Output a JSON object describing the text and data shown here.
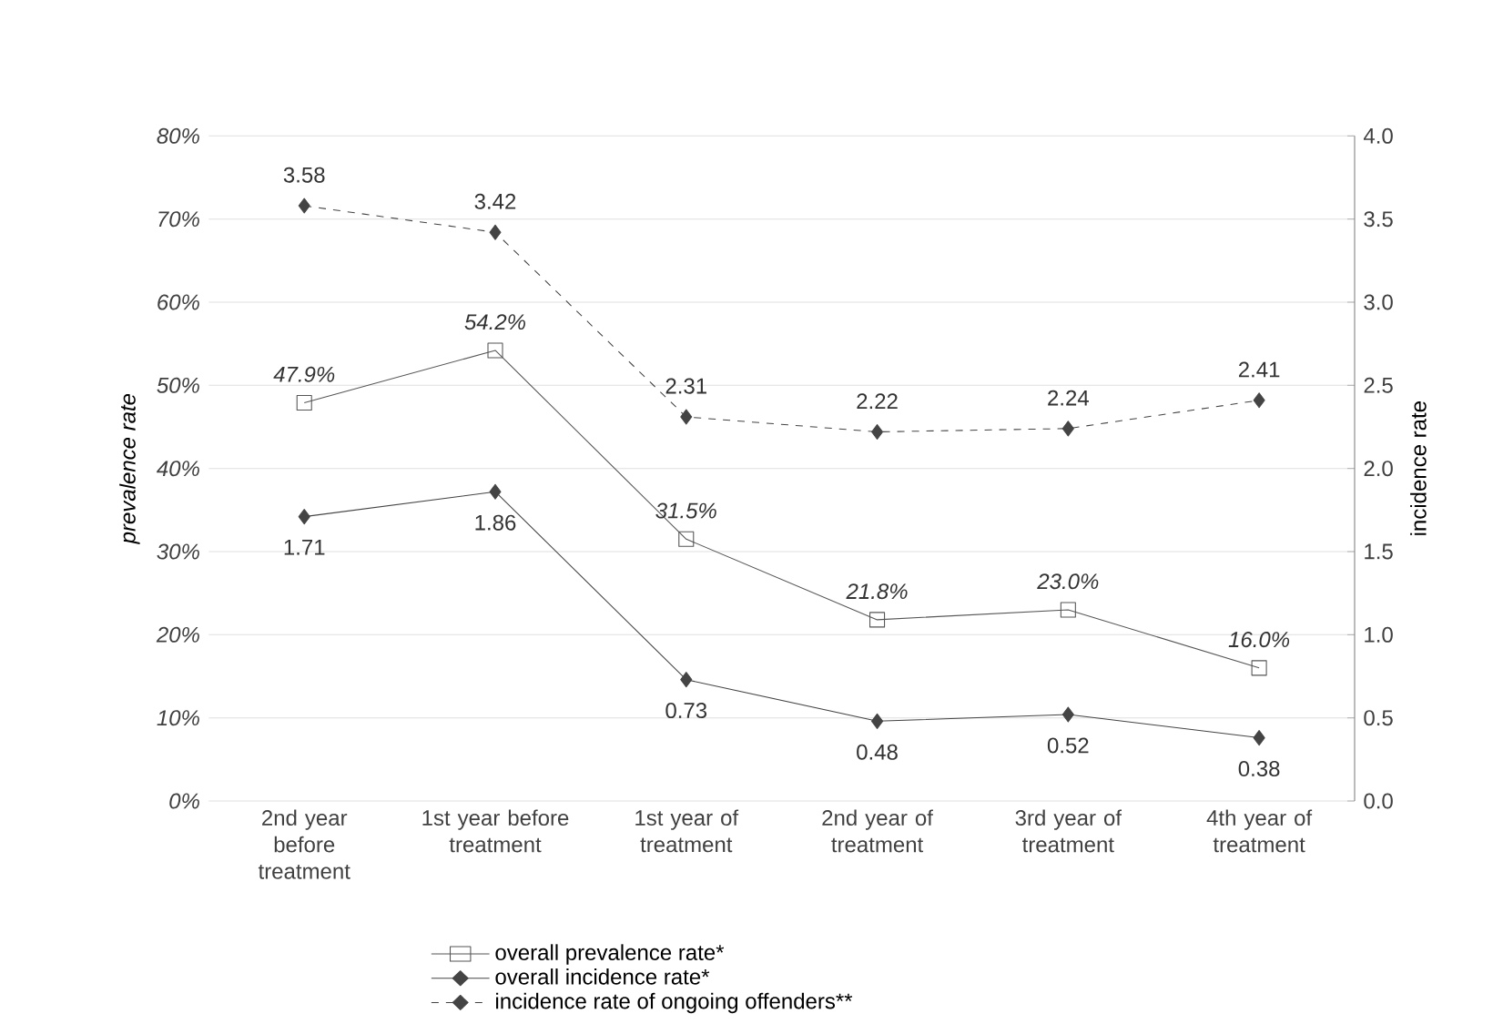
{
  "chart_data": {
    "type": "line",
    "ylabel": "prevalence rate",
    "y2label": "incidence rate",
    "categories": [
      "2nd year before treatment",
      "1st year before treatment",
      "1st year of treatment",
      "2nd year of treatment",
      "3rd year of treatment",
      "4th year of treatment"
    ],
    "ylim": [
      0,
      80
    ],
    "yticks": [
      {
        "value": 0,
        "label": "0%"
      },
      {
        "value": 10,
        "label": "10%"
      },
      {
        "value": 20,
        "label": "20%"
      },
      {
        "value": 30,
        "label": "30%"
      },
      {
        "value": 40,
        "label": "40%"
      },
      {
        "value": 50,
        "label": "50%"
      },
      {
        "value": 60,
        "label": "60%"
      },
      {
        "value": 70,
        "label": "70%"
      },
      {
        "value": 80,
        "label": "80%"
      }
    ],
    "y2lim": [
      0,
      4
    ],
    "y2ticks": [
      {
        "value": 0,
        "label": "0.0"
      },
      {
        "value": 0.5,
        "label": "0.5"
      },
      {
        "value": 1,
        "label": "1.0"
      },
      {
        "value": 1.5,
        "label": "1.5"
      },
      {
        "value": 2,
        "label": "2.0"
      },
      {
        "value": 2.5,
        "label": "2.5"
      },
      {
        "value": 3,
        "label": "3.0"
      },
      {
        "value": 3.5,
        "label": "3.5"
      },
      {
        "value": 4,
        "label": "4.0"
      }
    ],
    "grid": "y",
    "legend": "bottom",
    "series": [
      {
        "name": "overall prevalence rate*",
        "color": "#555555",
        "marker": "square",
        "line_style": "solid",
        "values": [
          47.9,
          54.2,
          31.5,
          21.8,
          23.0,
          16.0
        ],
        "value_labels": [
          "47.9%",
          "54.2%",
          "31.5%",
          "21.8%",
          "23.0%",
          "16.0%"
        ]
      },
      {
        "name": "overall incidence rate*",
        "color": "#444444",
        "marker": "diamond",
        "line_style": "solid",
        "axis": "y2",
        "values": [
          1.71,
          1.86,
          0.73,
          0.48,
          0.52,
          0.38
        ],
        "value_labels": [
          "1.71",
          "1.86",
          "0.73",
          "0.48",
          "0.52",
          "0.38"
        ]
      },
      {
        "name": "incidence rate of ongoing offenders**",
        "color": "#444444",
        "marker": "diamond",
        "line_style": "dashed",
        "axis": "y2",
        "values": [
          3.58,
          3.42,
          2.31,
          2.22,
          2.24,
          2.41
        ],
        "value_labels": [
          "3.58",
          "3.42",
          "2.31",
          "2.22",
          "2.24",
          "2.41"
        ]
      }
    ]
  }
}
